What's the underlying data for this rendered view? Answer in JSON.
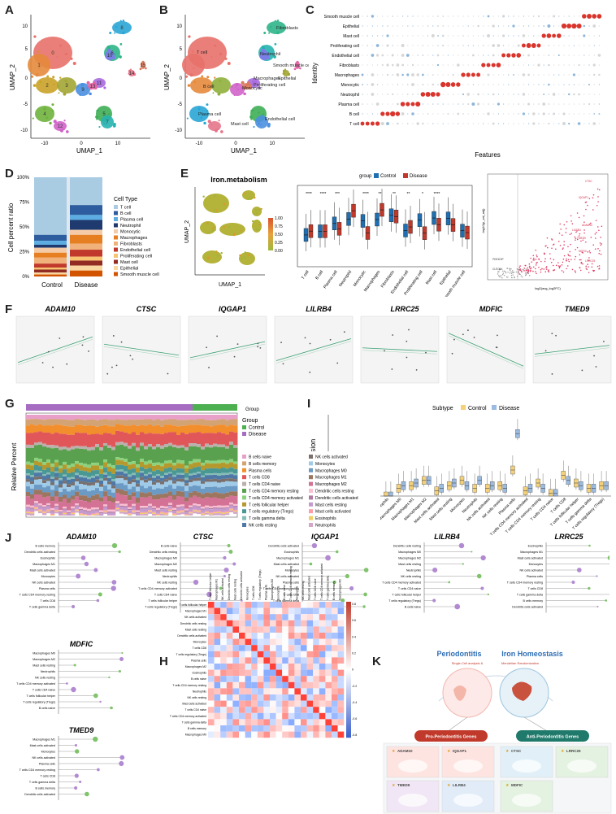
{
  "panel_letters": {
    "A": "A",
    "B": "B",
    "C": "C",
    "D": "D",
    "E": "E",
    "F": "F",
    "G": "G",
    "H": "H",
    "I": "I",
    "J": "J",
    "K": "K"
  },
  "umap": {
    "xlabel": "UMAP_1",
    "ylabel": "UMAP_2",
    "xticks": [
      "-10",
      "0",
      "10"
    ],
    "yticks": [
      "10",
      "5",
      "0",
      "-5",
      "-10"
    ],
    "cluster_numbers": [
      "0",
      "1",
      "2",
      "3",
      "4",
      "5",
      "6",
      "7",
      "8",
      "9",
      "10",
      "11",
      "12",
      "13",
      "14",
      "15"
    ],
    "cell_labels": [
      "T cell",
      "Neutrophil",
      "Fibroblasts",
      "Smooth muscle cell",
      "Epithelial",
      "B cell",
      "Macrophages",
      "Proliferating cell",
      "Plasma cell",
      "Mast cell",
      "Endothelial cell",
      "Monocytic"
    ]
  },
  "dotplot": {
    "xlabel": "Features",
    "ylabel": "Identity",
    "identities": [
      "Smooth muscle cell",
      "Epithelial",
      "Mast cell",
      "Proliferating cell",
      "Endothelial cell",
      "Fibroblasts",
      "Macrophages",
      "Monocytic",
      "Neutrophil",
      "Plasma cell",
      "B cell",
      "T cell"
    ]
  },
  "stacked": {
    "ylabel": "Cell percent ratio",
    "yticks": [
      "100%",
      "75%",
      "50%",
      "25%",
      "0%"
    ],
    "groups": [
      "Control",
      "Disease"
    ],
    "legend_title": "Cell Type",
    "legend": [
      "T cell",
      "B cell",
      "Plasma cell",
      "Neutrophil",
      "Monocytic",
      "Macrophages",
      "Fibroblasts",
      "Endothelial cell",
      "Proliferating cell",
      "Mast cell",
      "Epithelial",
      "Smooth muscle cell"
    ],
    "colors": [
      "#a9cce3",
      "#2e5d9f",
      "#5dade2",
      "#1f3a6e",
      "#f5cba7",
      "#e67e22",
      "#f0b27a",
      "#c0392b",
      "#f8c471",
      "#922b21",
      "#fad7a0",
      "#d35400"
    ]
  },
  "iron": {
    "title": "Iron.metabolism",
    "colorbar": [
      "1.00",
      "0.75",
      "0.50",
      "0.25",
      "0.00"
    ],
    "xlabel": "UMAP_1",
    "ylabel": "UMAP_2",
    "legend_title": "group",
    "groups": [
      "Control",
      "Disease"
    ],
    "box_cells": [
      "T cell",
      "B cell",
      "Plasma cell",
      "Neutrophil",
      "Monocytic",
      "Macrophages",
      "Fibroblasts",
      "Endothelial cell",
      "Proliferating cell",
      "Mast cell",
      "Epithelial",
      "Smooth muscle cell"
    ],
    "sig": [
      "****",
      "****",
      "***",
      "",
      "****",
      "**",
      "**",
      "**",
      "*",
      "****",
      "",
      ""
    ]
  },
  "volcano": {
    "xlabel": "log2(avg_log2FC)",
    "ylabel": "-log10(p_val_adj)",
    "labels": [
      "CTSC",
      "IQGAP1",
      "LILRB4",
      "ADAM10",
      "TMED9",
      "MDFIC",
      "LRRC25",
      "PDE4DIP",
      "CLEC4A"
    ]
  },
  "genes_F": [
    "ADAM10",
    "CTSC",
    "IQGAP1",
    "LILRB4",
    "LRRC25",
    "MDFIC",
    "TMED9"
  ],
  "group_bar": {
    "label": "Group",
    "ylabel": "Relative Percent",
    "legend_title": "Group",
    "groups": [
      "Control",
      "Disease"
    ],
    "group_colors": [
      "#4caf50",
      "#a56cc1"
    ],
    "cells": [
      "B cells naive",
      "B cells memory",
      "Plasma cells",
      "T cells CD8",
      "T cells CD4 naive",
      "T cells CD4 memory resting",
      "T cells CD4 memory activated",
      "T cells follicular helper",
      "T cells regulatory (Tregs)",
      "T cells gamma delta",
      "NK cells resting",
      "NK cells activated",
      "Monocytes",
      "Macrophages M0",
      "Macrophages M1",
      "Macrophages M2",
      "Dendritic cells resting",
      "Dendritic cells activated",
      "Mast cells resting",
      "Mast cells activated",
      "Eosinophils",
      "Neutrophils"
    ],
    "colors": [
      "#e8a0c8",
      "#d4a373",
      "#f28e2b",
      "#e15759",
      "#bab0ac",
      "#59a14f",
      "#8cd17d",
      "#b6992d",
      "#499894",
      "#86bcb6",
      "#4e79a7",
      "#79706e",
      "#a0cbe8",
      "#6b9ac4",
      "#9d7660",
      "#d37295",
      "#fabfd2",
      "#b07aa1",
      "#c49bcf",
      "#ff9da7",
      "#f1ce63",
      "#d4a6c8"
    ]
  },
  "boxI": {
    "legend_title": "Subtype",
    "groups": [
      "Control",
      "Disease"
    ],
    "ylabel": "Expression",
    "cells": [
      "B cells memory",
      "B cells naive",
      "Dendritic cells activated",
      "Dendritic cells resting",
      "Eosinophils",
      "Macrophages M0",
      "Macrophages M1",
      "Macrophages M2",
      "Mast cells activated",
      "Mast cells resting",
      "Monocytes",
      "Neutrophils",
      "NK cells activated",
      "NK cells resting",
      "Plasma cells",
      "T cells CD4 memory activated",
      "T cells CD4 memory resting",
      "T cells CD4 naive",
      "T cells CD8",
      "T cells follicular helper",
      "T cells gamma delta",
      "T cells regulatory (Tregs)"
    ],
    "control_values": [
      0.06,
      0.05,
      0.02,
      0.02,
      0.0,
      0.03,
      0.04,
      0.06,
      0.02,
      0.04,
      0.06,
      0.03,
      0.03,
      0.04,
      0.1,
      0.02,
      0.05,
      0.01,
      0.08,
      0.05,
      0.03,
      0.04
    ],
    "disease_values": [
      0.05,
      0.03,
      0.02,
      0.02,
      0.0,
      0.04,
      0.05,
      0.06,
      0.03,
      0.05,
      0.04,
      0.06,
      0.04,
      0.03,
      0.24,
      0.03,
      0.03,
      0.01,
      0.06,
      0.04,
      0.03,
      0.04
    ]
  },
  "genes_J": [
    "ADAM10",
    "CTSC",
    "IQGAP1",
    "LILRB4",
    "LRRC25",
    "MDFIC",
    "TMED9"
  ],
  "heatmap_rows": [
    "T cells follicular helper",
    "Macrophages M1",
    "NK cells activated",
    "Dendritic cells resting",
    "Mast cells resting",
    "Dendritic cells activated",
    "Monocytes",
    "T cells CD8",
    "T cells regulatory (Tregs)",
    "Plasma cells",
    "Macrophages M2",
    "Eosinophils",
    "B cells naive",
    "T cells CD4 memory resting",
    "Neutrophils",
    "NK cells resting",
    "Mast cells activated",
    "T cells CD4 naive",
    "T cells CD4 memory activated",
    "T cells gamma delta",
    "B cells memory",
    "Macrophages M0"
  ],
  "heatmap_scale": [
    "0.8",
    "0.6",
    "0.4",
    "0.2",
    "0",
    "-0.2",
    "-0.4",
    "-0.6",
    "-0.8"
  ],
  "diagram": {
    "title_left": "Periodontitis",
    "title_right": "Iron Homeostasis",
    "sub_left": "Single-Cell analysis &",
    "sub_right": "Mendelian Randomization",
    "left_pill": "Pro-Periodontitis Genes",
    "right_pill": "Anti-Periodontitis Genes",
    "genes": [
      "ADAM10",
      "IQGAP1",
      "CTSC",
      "LRRC25",
      "TMED9",
      "LILRB4",
      "MDFIC"
    ]
  }
}
